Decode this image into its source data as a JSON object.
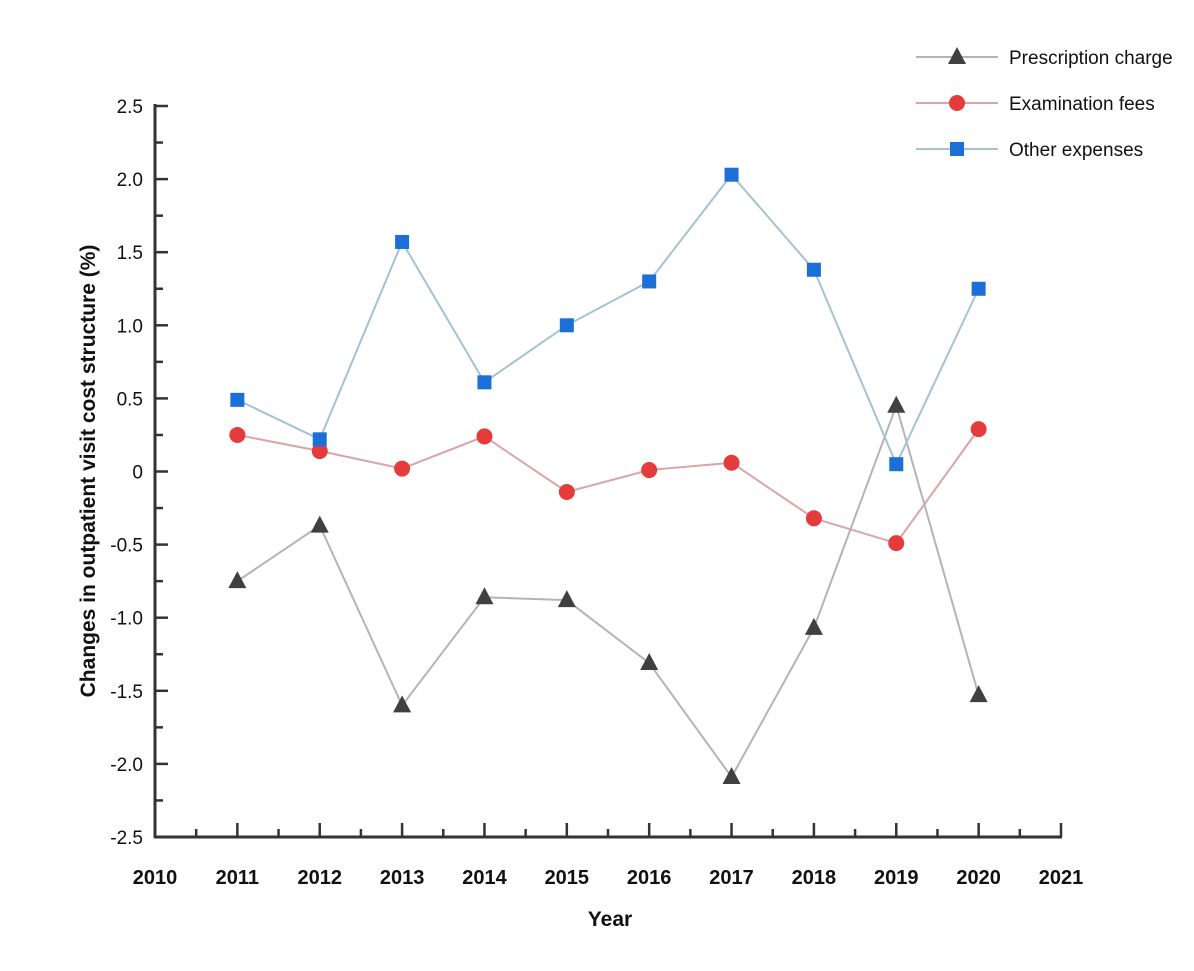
{
  "chart_data": {
    "type": "line",
    "title": "",
    "xlabel": "Year",
    "ylabel": "Changes in outpatient visit cost structure (%)",
    "xlim": [
      2010,
      2021
    ],
    "ylim": [
      -2.5,
      2.5
    ],
    "xticks": [
      "2010",
      "2011",
      "2012",
      "2013",
      "2014",
      "2015",
      "2016",
      "2017",
      "2018",
      "2019",
      "2020",
      "2021"
    ],
    "yticks": [
      "2.5",
      "2.0",
      "1.5",
      "1.0",
      "0.5",
      "0",
      "-0.5",
      "-1.0",
      "-1.5",
      "-2.0",
      "-2.5"
    ],
    "grid": false,
    "legend_position": "top-right",
    "x": [
      2011,
      2012,
      2013,
      2014,
      2015,
      2016,
      2017,
      2018,
      2019,
      2020
    ],
    "series": [
      {
        "name": "Prescription charge",
        "marker": "triangle",
        "marker_color": "#404040",
        "line_color": "#b4b4b4",
        "values": [
          -0.75,
          -0.37,
          -1.6,
          -0.86,
          -0.88,
          -1.31,
          -2.09,
          -1.07,
          0.45,
          -1.53
        ]
      },
      {
        "name": "Examination fees",
        "marker": "circle",
        "marker_color": "#e63b3b",
        "line_color": "#dba5a5",
        "values": [
          0.25,
          0.14,
          0.02,
          0.24,
          -0.14,
          0.01,
          0.06,
          -0.32,
          -0.49,
          0.29
        ]
      },
      {
        "name": "Other expenses",
        "marker": "square",
        "marker_color": "#1c6fd6",
        "line_color": "#a3c3d3",
        "values": [
          0.49,
          0.22,
          1.57,
          0.61,
          1.0,
          1.3,
          2.03,
          1.38,
          0.05,
          1.25
        ]
      }
    ]
  }
}
